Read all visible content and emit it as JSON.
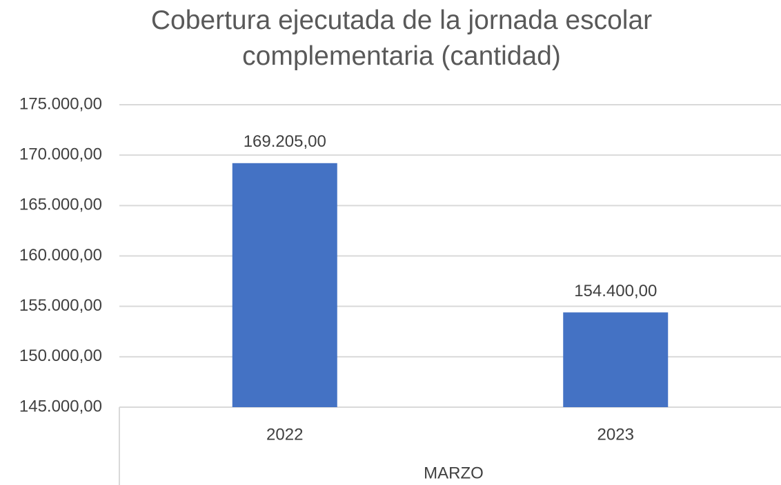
{
  "chart_data": {
    "type": "bar",
    "title": "Cobertura ejecutada de la jornada escolar complementaria (cantidad)",
    "categories": [
      "2022",
      "2023"
    ],
    "group_label": "MARZO",
    "values": [
      169205,
      154400
    ],
    "value_labels": [
      "169.205,00",
      "154.400,00"
    ],
    "color": "#4472c4",
    "ylim": [
      145000,
      175000
    ],
    "yticks": [
      {
        "value": 145000,
        "label": "145.000,00"
      },
      {
        "value": 150000,
        "label": "150.000,00"
      },
      {
        "value": 155000,
        "label": "155.000,00"
      },
      {
        "value": 160000,
        "label": "160.000,00"
      },
      {
        "value": 165000,
        "label": "165.000,00"
      },
      {
        "value": 170000,
        "label": "170.000,00"
      },
      {
        "value": 175000,
        "label": "175.000,00"
      }
    ],
    "grid": true
  }
}
